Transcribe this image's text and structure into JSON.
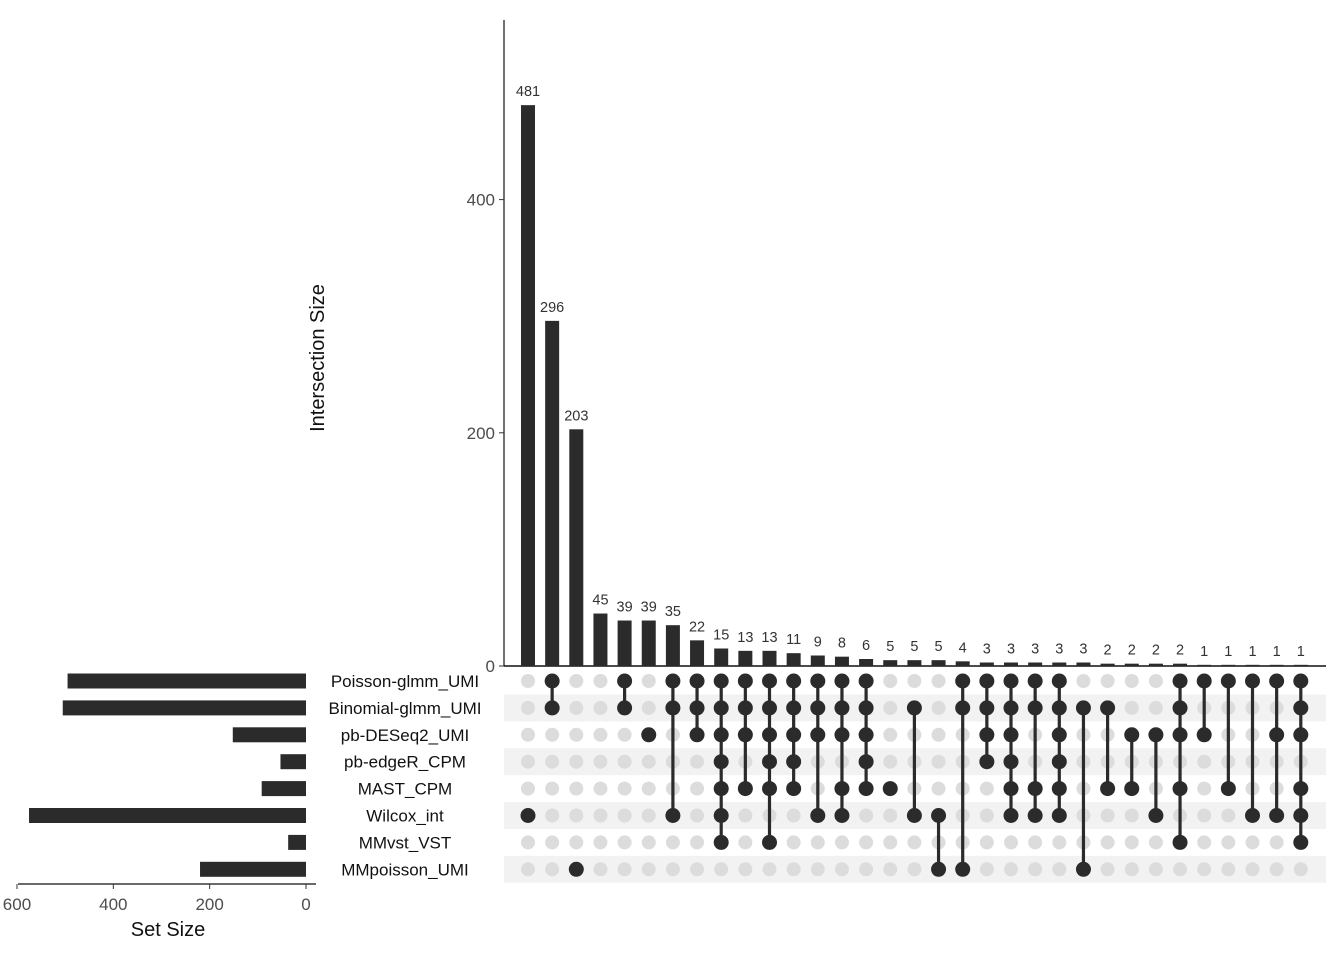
{
  "chart_data": {
    "type": "upset",
    "ylabel": "Intersection Size",
    "yticks": [
      0,
      200,
      400
    ],
    "ylim": [
      0,
      550
    ],
    "set_size_label": "Set Size",
    "set_size_ticks": [
      600,
      400,
      200,
      0
    ],
    "sets": [
      {
        "name": "Poisson-glmm_UMI",
        "size": 495
      },
      {
        "name": "Binomial-glmm_UMI",
        "size": 505
      },
      {
        "name": "pb-DESeq2_UMI",
        "size": 152
      },
      {
        "name": "pb-edgeR_CPM",
        "size": 53
      },
      {
        "name": "MAST_CPM",
        "size": 92
      },
      {
        "name": "Wilcox_int",
        "size": 575
      },
      {
        "name": "MMvst_VST",
        "size": 37
      },
      {
        "name": "MMpoisson_UMI",
        "size": 220
      }
    ],
    "intersections": [
      {
        "size": 481,
        "sets": [
          5
        ]
      },
      {
        "size": 296,
        "sets": [
          0,
          1
        ]
      },
      {
        "size": 203,
        "sets": [
          7
        ]
      },
      {
        "size": 45,
        "sets": []
      },
      {
        "size": 39,
        "sets": [
          0,
          1
        ]
      },
      {
        "size": 39,
        "sets": [
          2
        ]
      },
      {
        "size": 35,
        "sets": [
          0,
          1,
          5
        ]
      },
      {
        "size": 22,
        "sets": [
          0,
          1,
          2
        ]
      },
      {
        "size": 15,
        "sets": [
          0,
          1,
          2,
          3,
          4,
          5,
          6
        ]
      },
      {
        "size": 13,
        "sets": [
          0,
          1,
          2,
          4
        ]
      },
      {
        "size": 13,
        "sets": [
          0,
          1,
          2,
          3,
          4,
          6
        ]
      },
      {
        "size": 11,
        "sets": [
          0,
          1,
          2,
          3,
          4
        ]
      },
      {
        "size": 9,
        "sets": [
          0,
          1,
          2,
          5
        ]
      },
      {
        "size": 8,
        "sets": [
          0,
          1,
          2,
          4,
          5
        ]
      },
      {
        "size": 6,
        "sets": [
          0,
          1,
          2,
          3,
          4
        ]
      },
      {
        "size": 5,
        "sets": [
          4
        ]
      },
      {
        "size": 5,
        "sets": [
          1,
          5
        ]
      },
      {
        "size": 5,
        "sets": [
          5,
          7
        ]
      },
      {
        "size": 4,
        "sets": [
          0,
          1,
          7
        ]
      },
      {
        "size": 3,
        "sets": [
          0,
          1,
          2,
          3
        ]
      },
      {
        "size": 3,
        "sets": [
          0,
          1,
          2,
          3,
          4,
          5
        ]
      },
      {
        "size": 3,
        "sets": [
          0,
          1,
          4,
          5
        ]
      },
      {
        "size": 3,
        "sets": [
          0,
          1,
          2,
          3,
          4,
          5
        ]
      },
      {
        "size": 3,
        "sets": [
          1,
          7
        ]
      },
      {
        "size": 2,
        "sets": [
          1,
          4
        ]
      },
      {
        "size": 2,
        "sets": [
          2,
          4
        ]
      },
      {
        "size": 2,
        "sets": [
          2,
          5
        ]
      },
      {
        "size": 2,
        "sets": [
          0,
          1,
          2,
          4,
          6
        ]
      },
      {
        "size": 1,
        "sets": [
          0,
          2
        ]
      },
      {
        "size": 1,
        "sets": [
          0,
          4
        ]
      },
      {
        "size": 1,
        "sets": [
          0,
          5
        ]
      },
      {
        "size": 1,
        "sets": [
          0,
          2,
          5
        ]
      },
      {
        "size": 1,
        "sets": [
          0,
          1,
          2,
          4,
          5,
          6
        ]
      }
    ],
    "colors": {
      "bar": "#2b2b2b",
      "dot_active": "#2b2b2b",
      "dot_inactive": "#dcdcdc",
      "stripe": "#f2f2f2"
    }
  }
}
